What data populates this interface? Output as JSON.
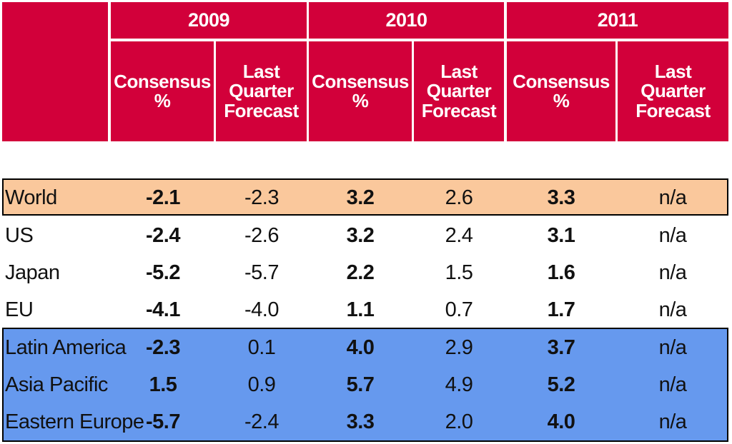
{
  "chart_data": {
    "type": "table",
    "years": [
      "2009",
      "2010",
      "2011"
    ],
    "column_headers": [
      "Consensus %",
      "Last Quarter Forecast",
      "Consensus %",
      "Last Quarter Forecast",
      "Consensus %",
      "Last Quarter Forecast"
    ],
    "rows": [
      {
        "label": "World",
        "values": [
          "-2.1",
          "-2.3",
          "3.2",
          "2.6",
          "3.3",
          "n/a"
        ]
      },
      {
        "label": "US",
        "values": [
          "-2.4",
          "-2.6",
          "3.2",
          "2.4",
          "3.1",
          "n/a"
        ]
      },
      {
        "label": "Japan",
        "values": [
          "-5.2",
          "-5.7",
          "2.2",
          "1.5",
          "1.6",
          "n/a"
        ]
      },
      {
        "label": "EU",
        "values": [
          "-4.1",
          "-4.0",
          "1.1",
          "0.7",
          "1.7",
          "n/a"
        ]
      },
      {
        "label": "Latin America",
        "values": [
          "-2.3",
          "0.1",
          "4.0",
          "2.9",
          "3.7",
          "n/a"
        ]
      },
      {
        "label": "Asia Pacific",
        "values": [
          "1.5",
          "0.9",
          "5.7",
          "4.9",
          "5.2",
          "n/a"
        ]
      },
      {
        "label": "Eastern Europe",
        "values": [
          "-5.7",
          "-2.4",
          "3.3",
          "2.0",
          "4.0",
          "n/a"
        ]
      }
    ]
  },
  "colors": {
    "header_bg": "#d2003a",
    "header_text": "#ffffff",
    "world_band": "#fac89c",
    "regions_band": "#6699ee"
  }
}
